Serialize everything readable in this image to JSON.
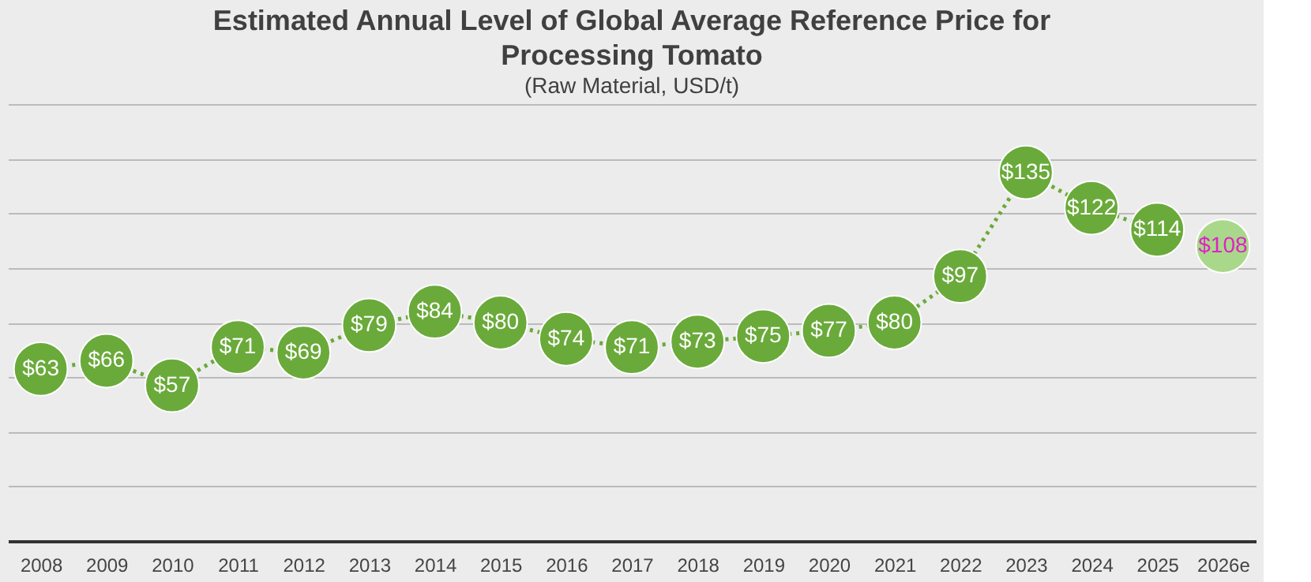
{
  "chart_data": {
    "type": "line",
    "title": "Estimated Annual Level of Global Average Reference Price for Processing Tomato",
    "subtitle": "(Raw Material, USD/t)",
    "categories": [
      "2008",
      "2009",
      "2010",
      "2011",
      "2012",
      "2013",
      "2014",
      "2015",
      "2016",
      "2017",
      "2018",
      "2019",
      "2020",
      "2021",
      "2022",
      "2023",
      "2024",
      "2025",
      "2026e"
    ],
    "series": [
      {
        "color": "#6aaa3a",
        "values": [
          63,
          66,
          57,
          71,
          69,
          79,
          84,
          80,
          74,
          71,
          73,
          75,
          77,
          80,
          97,
          135,
          122,
          114,
          null
        ],
        "value_labels": [
          "$63",
          "$66",
          "$57",
          "$71",
          "$69",
          "$79",
          "$84",
          "$80",
          "$74",
          "$71",
          "$73",
          "$75",
          "$77",
          "$80",
          "$97",
          "$135",
          "$122",
          "$114",
          null
        ]
      },
      {
        "color": "#a9d88a",
        "values": [
          null,
          null,
          null,
          null,
          null,
          null,
          null,
          null,
          null,
          null,
          null,
          null,
          null,
          null,
          null,
          null,
          null,
          null,
          108
        ],
        "value_labels": [
          null,
          null,
          null,
          null,
          null,
          null,
          null,
          null,
          null,
          null,
          null,
          null,
          null,
          null,
          null,
          null,
          null,
          null,
          "$108"
        ]
      }
    ],
    "ylim": [
      0,
      160
    ],
    "yticks": [
      {
        "value": 0,
        "label": null
      },
      {
        "value": 20,
        "label": null
      },
      {
        "value": 40,
        "label": null
      },
      {
        "value": 60,
        "label": null
      },
      {
        "value": 80,
        "label": null
      },
      {
        "value": 100,
        "label": null
      },
      {
        "value": 120,
        "label": null
      },
      {
        "value": 140,
        "label": null
      },
      {
        "value": 160,
        "label": null
      }
    ],
    "grid": "y",
    "tick_labels": "x",
    "marker": "circle",
    "line_style": "dotted"
  }
}
